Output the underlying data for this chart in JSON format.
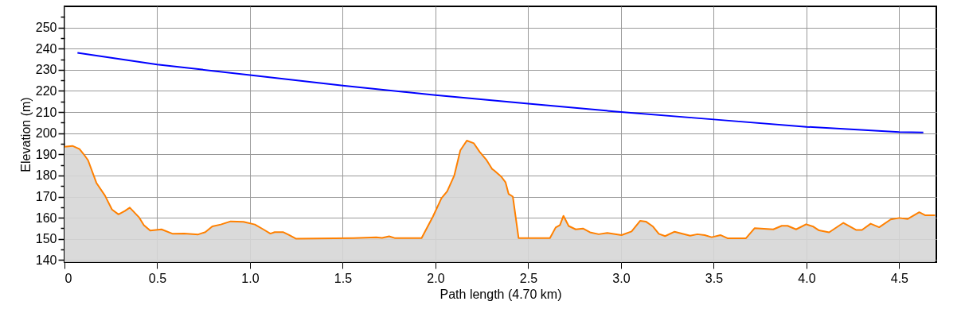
{
  "chart_data": {
    "type": "area",
    "xlabel": "Path length (4.70 km)",
    "ylabel": "Elevation (m)",
    "xlim": [
      0,
      4.7
    ],
    "ylim": [
      139,
      260
    ],
    "xticks": [
      0,
      0.5,
      {
        "value": 1,
        "label": "1.0"
      },
      1.5,
      {
        "value": 2,
        "label": "2.0"
      },
      2.5,
      {
        "value": 3,
        "label": "3.0"
      },
      3.5,
      {
        "value": 4,
        "label": "4.0"
      },
      4.5
    ],
    "yticks": [
      140,
      {
        "value": 145,
        "label": null
      },
      150,
      {
        "value": 155,
        "label": null
      },
      160,
      {
        "value": 165,
        "label": null
      },
      170,
      {
        "value": 175,
        "label": null
      },
      180,
      {
        "value": 185,
        "label": null
      },
      190,
      {
        "value": 195,
        "label": null
      },
      200,
      {
        "value": 205,
        "label": null
      },
      210,
      {
        "value": 215,
        "label": null
      },
      220,
      {
        "value": 225,
        "label": null
      },
      230,
      {
        "value": 235,
        "label": null
      },
      240,
      {
        "value": 245,
        "label": null
      },
      250,
      {
        "value": 255,
        "label": null
      }
    ],
    "grid": true,
    "series": [
      {
        "color": "#ff8000",
        "x": [
          0,
          0.043,
          0.081,
          0.104,
          0.127,
          0.172,
          0.218,
          0.256,
          0.291,
          0.325,
          0.352,
          0.401,
          0.428,
          0.462,
          0.523,
          0.584,
          0.645,
          0.721,
          0.759,
          0.797,
          0.843,
          0.896,
          0.965,
          1.026,
          1.072,
          1.11,
          1.133,
          1.178,
          1.209,
          1.247,
          1.559,
          1.681,
          1.712,
          1.75,
          1.78,
          1.925,
          1.986,
          2.032,
          2.063,
          2.101,
          2.134,
          2.169,
          2.207,
          2.238,
          2.276,
          2.306,
          2.316,
          2.355,
          2.378,
          2.394,
          2.417,
          2.448,
          2.617,
          2.648,
          2.671,
          2.69,
          2.718,
          2.756,
          2.795,
          2.833,
          2.88,
          2.926,
          3.003,
          3.057,
          3.103,
          3.134,
          3.173,
          3.204,
          3.238,
          3.289,
          3.373,
          3.412,
          3.451,
          3.489,
          3.536,
          3.574,
          3.674,
          3.721,
          3.821,
          3.867,
          3.898,
          3.944,
          3.998,
          4.037,
          4.068,
          4.122,
          4.199,
          4.269,
          4.299,
          4.346,
          4.392,
          4.454,
          4.5,
          4.546,
          4.608,
          4.639,
          4.693
        ],
        "values": [
          193.6,
          194,
          192.5,
          190,
          187.2,
          176.5,
          170.5,
          163.9,
          161.6,
          163.2,
          164.8,
          160.3,
          156.5,
          153.9,
          154.5,
          152.4,
          152.5,
          152.1,
          153.2,
          155.9,
          156.8,
          158.3,
          158.1,
          156.8,
          154.5,
          152.5,
          153.2,
          153.2,
          151.9,
          150.1,
          150.4,
          150.7,
          150.5,
          151.2,
          150.4,
          150.4,
          160.5,
          169.2,
          172.5,
          179.9,
          191.9,
          196.5,
          195.2,
          191.2,
          187.2,
          183,
          182.4,
          179.4,
          176.7,
          171.3,
          170,
          150.4,
          150.4,
          155.4,
          156.5,
          160.9,
          156.1,
          154.5,
          154.9,
          153.1,
          152.2,
          152.8,
          151.8,
          153.5,
          158.5,
          158.2,
          155.8,
          152.4,
          151.3,
          153.4,
          151.5,
          152.2,
          151.8,
          150.8,
          151.8,
          150.3,
          150.3,
          155.1,
          154.5,
          156.2,
          156.2,
          154.5,
          156.9,
          155.8,
          154,
          153.1,
          157.6,
          154.2,
          154.2,
          157.2,
          155.5,
          159.2,
          159.9,
          159.4,
          162.6,
          161.2,
          161.2
        ]
      },
      {
        "type": "line",
        "color": "#0000ff",
        "x": [
          0.07,
          0.5,
          1,
          1.5,
          2,
          2.5,
          3,
          3.5,
          4,
          4.5,
          4.63
        ],
        "values": [
          238,
          232.5,
          227.5,
          222.5,
          218,
          214,
          210,
          206.5,
          203,
          200.5,
          200.3
        ]
      }
    ]
  }
}
